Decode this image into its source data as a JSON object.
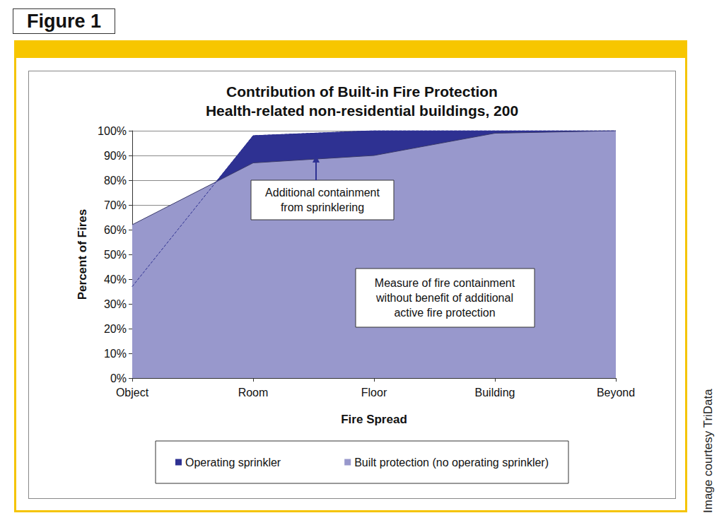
{
  "chart_data": {
    "type": "area",
    "title": "Contribution of Built-in Fire Protection",
    "subtitle": "Health-related non-residential buildings, 200",
    "categories": [
      "Object",
      "Room",
      "Floor",
      "Building",
      "Beyond"
    ],
    "series": [
      {
        "name": "Operating sprinkler",
        "color": "#2e3192",
        "values": [
          37,
          98,
          100,
          100,
          100
        ]
      },
      {
        "name": "Built protection (no operating sprinkler)",
        "color": "#9898cc",
        "values": [
          62,
          87,
          90,
          99,
          100
        ]
      }
    ],
    "x_label": "Fire Spread",
    "y_label": "Percent of Fires",
    "ylim": [
      0,
      100
    ],
    "yticks": [
      {
        "value": 0,
        "label": "0%"
      },
      {
        "value": 10,
        "label": "10%"
      },
      {
        "value": 20,
        "label": "20%"
      },
      {
        "value": 30,
        "label": "30%"
      },
      {
        "value": 40,
        "label": "40%"
      },
      {
        "value": 50,
        "label": "50%"
      },
      {
        "value": 60,
        "label": "60%"
      },
      {
        "value": 70,
        "label": "70%"
      },
      {
        "value": 80,
        "label": "80%"
      },
      {
        "value": 90,
        "label": "90%"
      },
      {
        "value": 100,
        "label": "100%"
      }
    ],
    "grid": true,
    "legend": "bottom",
    "annotations": [
      "Additional containment\nfrom sprinklering",
      "Measure of fire containment\nwithout benefit of additional\nactive fire protection"
    ]
  },
  "figure_label": "Figure 1",
  "credit": "Image courtesy TriData"
}
